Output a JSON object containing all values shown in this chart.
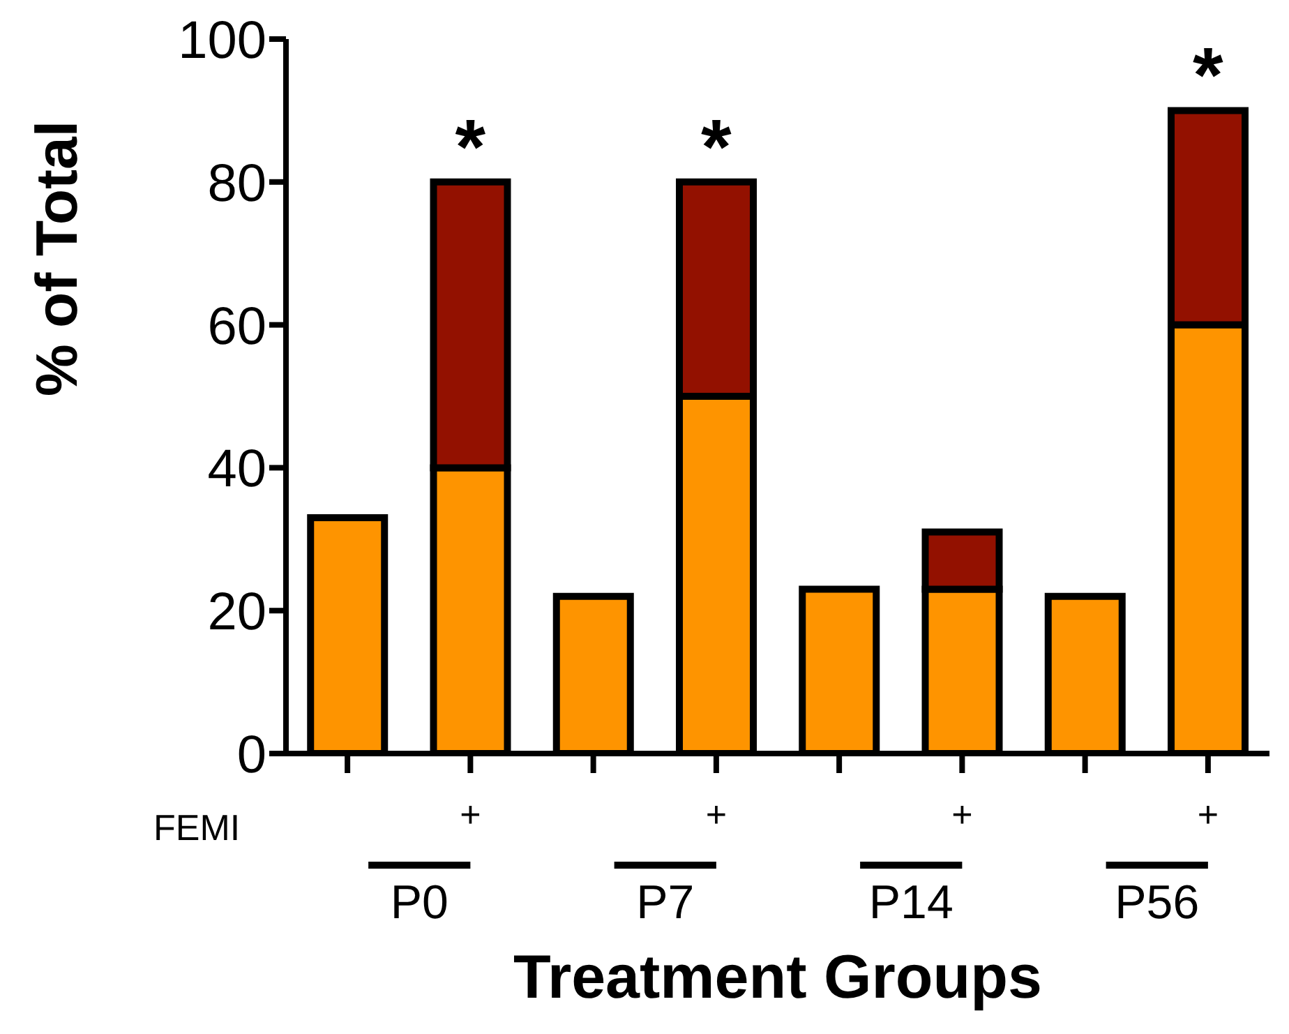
{
  "chart_data": {
    "type": "bar",
    "stacked": true,
    "xlabel": "Treatment Groups",
    "ylabel": "% of Total",
    "categories": [
      null,
      "+",
      null,
      "+",
      null,
      "+",
      null,
      "+"
    ],
    "series": [
      {
        "color": "#fe9400",
        "values": [
          33,
          40,
          22,
          50,
          23,
          23,
          22,
          60
        ]
      },
      {
        "color": "#931100",
        "values": [
          null,
          40,
          null,
          30,
          null,
          8,
          null,
          30
        ]
      }
    ],
    "ylim": [
      0,
      100
    ],
    "yticks": [
      0,
      20,
      40,
      60,
      80,
      100
    ],
    "grid": false,
    "legend": false,
    "annotations": [
      "FEMI",
      "P0",
      "P7",
      "P14",
      "P56",
      "*",
      "*",
      "*"
    ]
  }
}
